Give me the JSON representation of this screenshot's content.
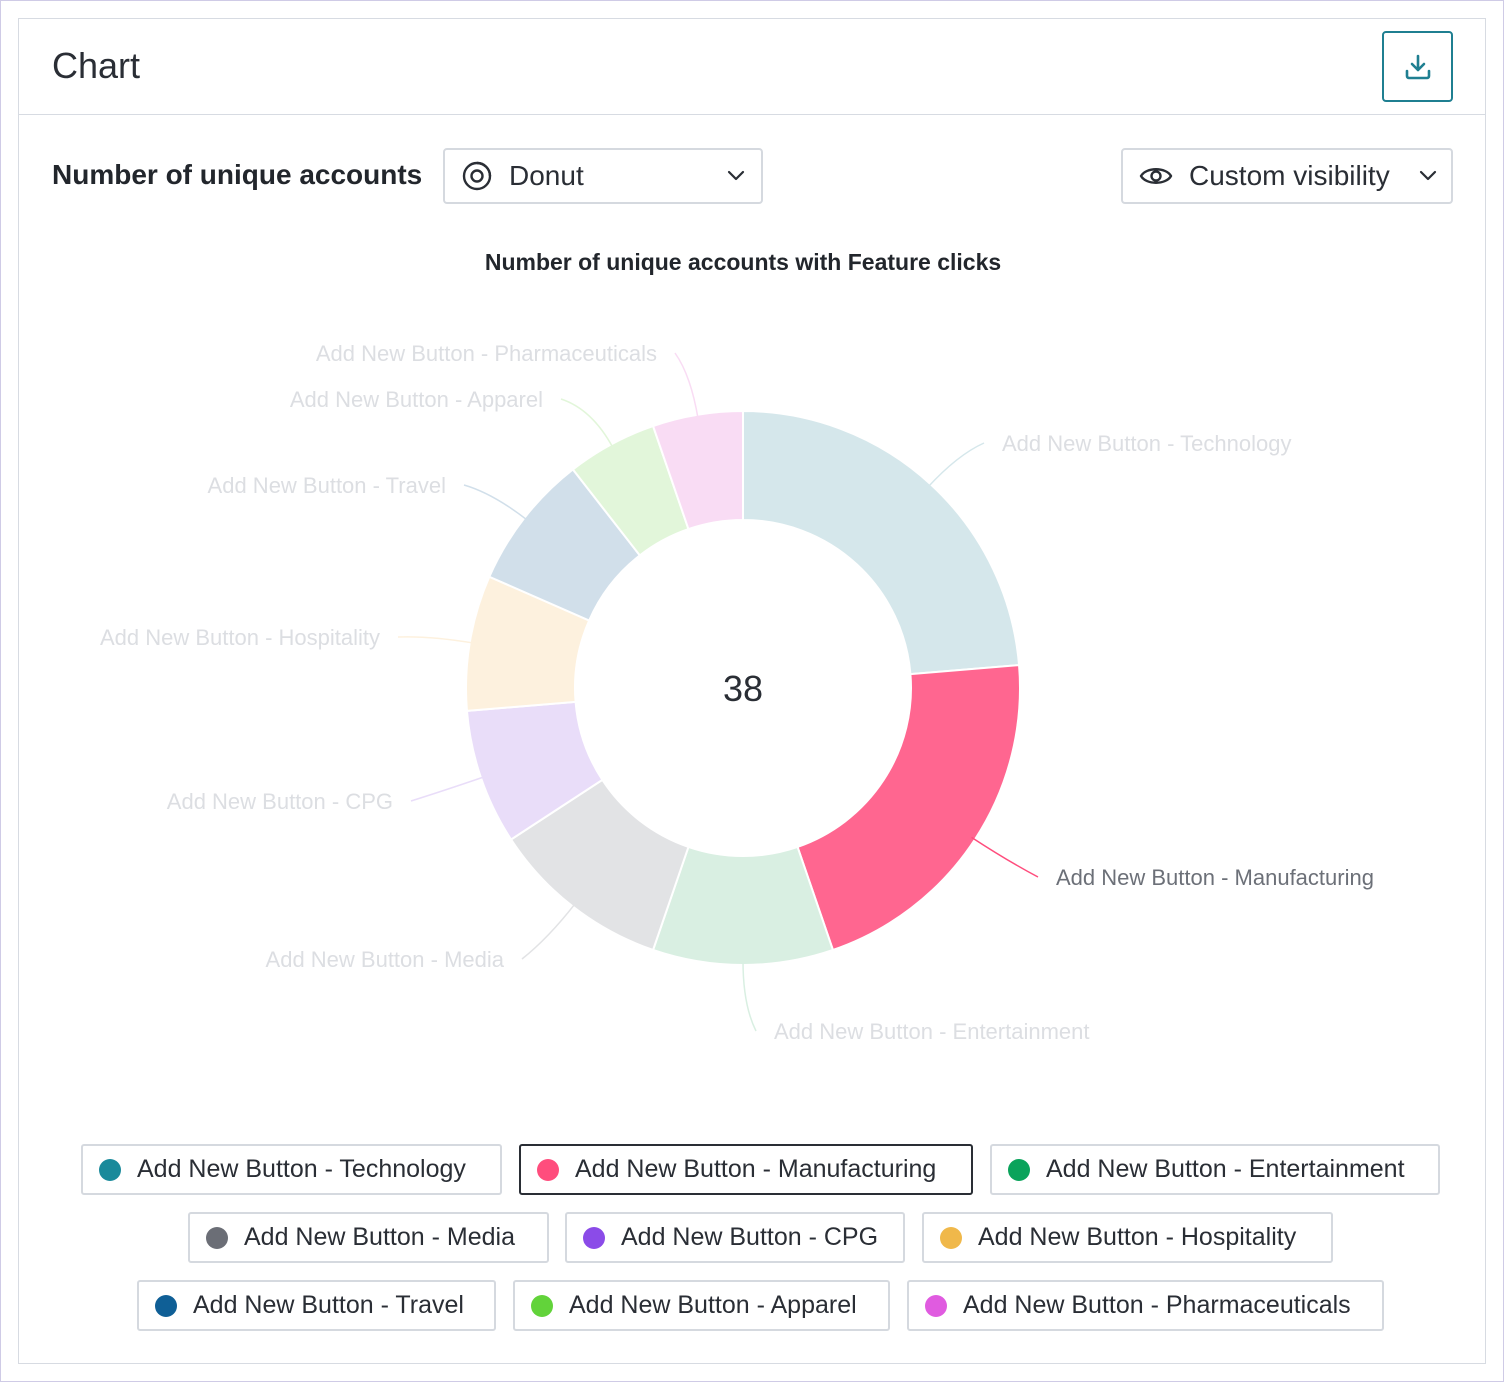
{
  "card": {
    "title": "Chart",
    "download_icon": "download-icon"
  },
  "controls": {
    "metric_label": "Number of unique accounts",
    "chart_type": {
      "icon": "donut-icon",
      "value": "Donut",
      "caret": "chevron-down-icon"
    },
    "visibility": {
      "icon": "eye-icon",
      "value": "Custom visibility",
      "caret": "chevron-down-icon"
    }
  },
  "chart_data": {
    "type": "pie",
    "variant": "donut",
    "title": "Number of unique accounts with Feature clicks",
    "center_label": "38",
    "total": 38,
    "highlighted": "Add New Button - Manufacturing",
    "slices": [
      {
        "label": "Add New Button - Technology",
        "value": 9,
        "color": "#1a8a9b",
        "faded_color": "#d5e7eb"
      },
      {
        "label": "Add New Button - Manufacturing",
        "value": 8,
        "color": "#ff4d7d",
        "faded_color": "#ff6690"
      },
      {
        "label": "Add New Button - Entertainment",
        "value": 4,
        "color": "#0aa35b",
        "faded_color": "#d9efe2"
      },
      {
        "label": "Add New Button - Media",
        "value": 4,
        "color": "#6b6e76",
        "faded_color": "#e2e3e5"
      },
      {
        "label": "Add New Button - CPG",
        "value": 3,
        "color": "#8b4be8",
        "faded_color": "#e9ddf9"
      },
      {
        "label": "Add New Button - Hospitality",
        "value": 3,
        "color": "#f0b84a",
        "faded_color": "#fdf1de"
      },
      {
        "label": "Add New Button - Travel",
        "value": 3,
        "color": "#0f5f96",
        "faded_color": "#d1dfea"
      },
      {
        "label": "Add New Button - Apparel",
        "value": 2,
        "color": "#62d33a",
        "faded_color": "#e2f6da"
      },
      {
        "label": "Add New Button - Pharmaceuticals",
        "value": 2,
        "color": "#e05be0",
        "faded_color": "#f9dcf4"
      }
    ]
  },
  "legend": {
    "items": [
      {
        "label": "Add New Button - Technology",
        "color": "#1a8a9b"
      },
      {
        "label": "Add New Button - Manufacturing",
        "color": "#ff4d7d",
        "active": true
      },
      {
        "label": "Add New Button - Entertainment",
        "color": "#0aa35b"
      },
      {
        "label": "Add New Button - Media",
        "color": "#6b6e76"
      },
      {
        "label": "Add New Button - CPG",
        "color": "#8b4be8"
      },
      {
        "label": "Add New Button - Hospitality",
        "color": "#f0b84a"
      },
      {
        "label": "Add New Button - Travel",
        "color": "#0f5f96"
      },
      {
        "label": "Add New Button - Apparel",
        "color": "#62d33a"
      },
      {
        "label": "Add New Button - Pharmaceuticals",
        "color": "#e05be0"
      }
    ]
  }
}
